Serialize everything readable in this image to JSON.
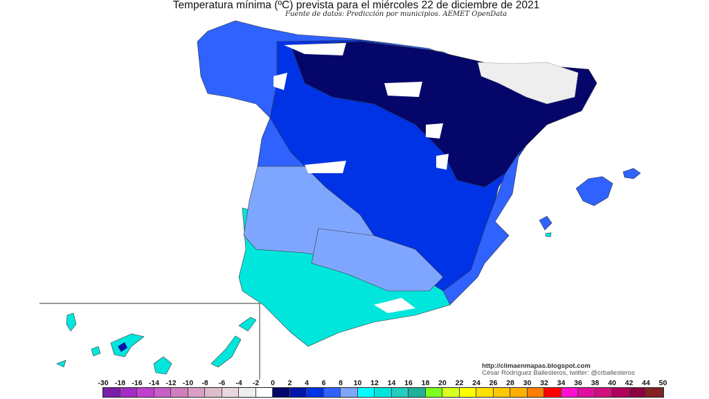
{
  "title": "Temperatura mínima (ºC) prevista para el miércoles 22 de diciembre de 2021",
  "subtitle": "Fuente de datos: Predicción por municipios. AEMET OpenData",
  "credits": {
    "url": "http://climaenmapas.blogspot.com",
    "author": "César Rodríguez Ballesteros, twitter: @crballesteros"
  },
  "legend": {
    "unit": "ºC",
    "labels": [
      "-30",
      "-18",
      "-16",
      "-14",
      "-12",
      "-10",
      "-8",
      "-6",
      "-4",
      "-2",
      "0",
      "2",
      "4",
      "6",
      "8",
      "10",
      "12",
      "14",
      "16",
      "18",
      "20",
      "22",
      "24",
      "26",
      "28",
      "30",
      "32",
      "34",
      "36",
      "38",
      "40",
      "42",
      "44",
      "50"
    ],
    "colors": [
      "#7a1fa8",
      "#a32cc4",
      "#c13fd0",
      "#c95ec6",
      "#d07fbf",
      "#d8a0c6",
      "#dfbccb",
      "#e9d6de",
      "#eeeeee",
      "#ffffff",
      "#05066a",
      "#0015aa",
      "#0033e6",
      "#2f62ff",
      "#7fa6ff",
      "#00ffff",
      "#00e6dc",
      "#1fd0be",
      "#20b09c",
      "#7cff1e",
      "#d8ff1e",
      "#ffff00",
      "#ffe000",
      "#ffc800",
      "#ffaf00",
      "#ff8000",
      "#ff0000",
      "#ff10d0",
      "#e0109e",
      "#d0107c",
      "#b0005c",
      "#8c0040",
      "#842222"
    ]
  },
  "map_colors": {
    "cold_navy": "#05066a",
    "dark_blue": "#0015aa",
    "blue": "#0033e6",
    "mid_blue": "#2f62ff",
    "light_blue": "#7fa6ff",
    "cyan": "#00e6dc",
    "below_zero": "#eeeeee"
  }
}
